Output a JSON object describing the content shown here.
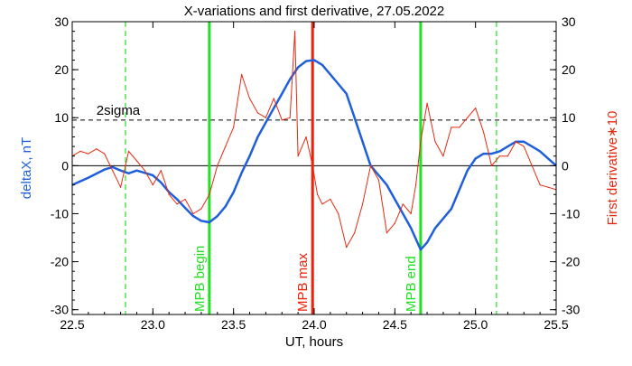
{
  "chart_data": {
    "type": "line",
    "title": "X-variations and first derivative, 27.05.2022",
    "xlabel": "UT, hours",
    "ylabel_left": "deltaX, nT",
    "ylabel_right": "First derivative∗10",
    "xlim": [
      22.5,
      25.5
    ],
    "ylim": [
      -31,
      30
    ],
    "x_ticks": [
      "22.5",
      "23.0",
      "23.5",
      "24.0",
      "24.5",
      "25.0",
      "25.5"
    ],
    "y_ticks": [
      "30",
      "20",
      "10",
      "0",
      "-10",
      "-20",
      "-30"
    ],
    "colors": {
      "deltaX": "#1f5fdc",
      "derivative": "#e8290f",
      "mpb": "#22e022",
      "max": "#f0200a",
      "axis": "#000000"
    },
    "sigma_label": "2sigma",
    "sigma_level": 9.5,
    "vertical_markers": [
      {
        "label": "MPB begin",
        "x": 23.35,
        "color": "#22e022",
        "style": "solid"
      },
      {
        "label": "MPB max",
        "x": 23.99,
        "color": "#f0200a",
        "style": "solid"
      },
      {
        "label": "MPB end",
        "x": 24.66,
        "color": "#22e022",
        "style": "solid"
      }
    ],
    "dashed_markers": [
      22.83,
      25.13
    ],
    "series": [
      {
        "key": "deltaX",
        "x": [
          22.5,
          22.6,
          22.7,
          22.75,
          22.8,
          22.85,
          22.9,
          22.95,
          23.0,
          23.05,
          23.1,
          23.15,
          23.2,
          23.25,
          23.3,
          23.35,
          23.4,
          23.45,
          23.5,
          23.55,
          23.6,
          23.65,
          23.7,
          23.75,
          23.8,
          23.85,
          23.9,
          23.95,
          24.0,
          24.05,
          24.1,
          24.15,
          24.2,
          24.25,
          24.3,
          24.35,
          24.4,
          24.45,
          24.5,
          24.55,
          24.6,
          24.66,
          24.7,
          24.75,
          24.8,
          24.85,
          24.9,
          24.95,
          25.0,
          25.05,
          25.1,
          25.15,
          25.2,
          25.25,
          25.3,
          25.35,
          25.4,
          25.45,
          25.5
        ],
        "values": [
          -4,
          -2.5,
          -0.8,
          -0.3,
          -1,
          -1.6,
          -1,
          -1.5,
          -2,
          -3.5,
          -5.5,
          -7,
          -8.8,
          -10.5,
          -11.5,
          -11.8,
          -10.5,
          -8.5,
          -5.5,
          -1.5,
          2,
          6,
          9,
          12,
          15,
          18,
          20.5,
          21.8,
          22,
          21,
          19,
          17,
          15,
          10,
          5,
          0,
          -2,
          -4,
          -7,
          -10,
          -13,
          -17.5,
          -16,
          -13,
          -11,
          -9,
          -5,
          -1,
          1.5,
          2.5,
          2.5,
          3,
          4,
          5,
          5,
          4,
          3,
          1.5,
          0
        ]
      },
      {
        "key": "derivative",
        "x": [
          22.5,
          22.55,
          22.6,
          22.65,
          22.7,
          22.75,
          22.8,
          22.83,
          22.85,
          22.9,
          22.95,
          23.0,
          23.05,
          23.1,
          23.15,
          23.2,
          23.25,
          23.3,
          23.35,
          23.4,
          23.45,
          23.5,
          23.55,
          23.6,
          23.65,
          23.7,
          23.75,
          23.8,
          23.85,
          23.88,
          23.9,
          23.95,
          23.99,
          24.02,
          24.05,
          24.1,
          24.15,
          24.2,
          24.25,
          24.3,
          24.35,
          24.4,
          24.45,
          24.5,
          24.55,
          24.6,
          24.63,
          24.66,
          24.7,
          24.75,
          24.8,
          24.85,
          24.9,
          24.95,
          25.0,
          25.05,
          25.1,
          25.15,
          25.2,
          25.25,
          25.3,
          25.35,
          25.4,
          25.45,
          25.5
        ],
        "values": [
          2,
          3,
          2.5,
          3.5,
          2.5,
          -1,
          -4.5,
          0,
          3,
          1,
          -1,
          -4,
          -1,
          -6,
          -8,
          -7,
          -10,
          -9,
          -6,
          0,
          4,
          8,
          19,
          14,
          11,
          10,
          14,
          9.5,
          10,
          28,
          2,
          6,
          0,
          -6,
          -8,
          -7,
          -10,
          -17,
          -14,
          -8,
          0,
          -3,
          -14,
          -12,
          -8,
          -10,
          -4,
          5,
          13,
          5,
          2,
          8,
          8,
          10,
          12,
          7,
          0,
          2,
          2,
          5,
          4,
          0,
          -4,
          -4.5,
          -5
        ]
      }
    ]
  }
}
